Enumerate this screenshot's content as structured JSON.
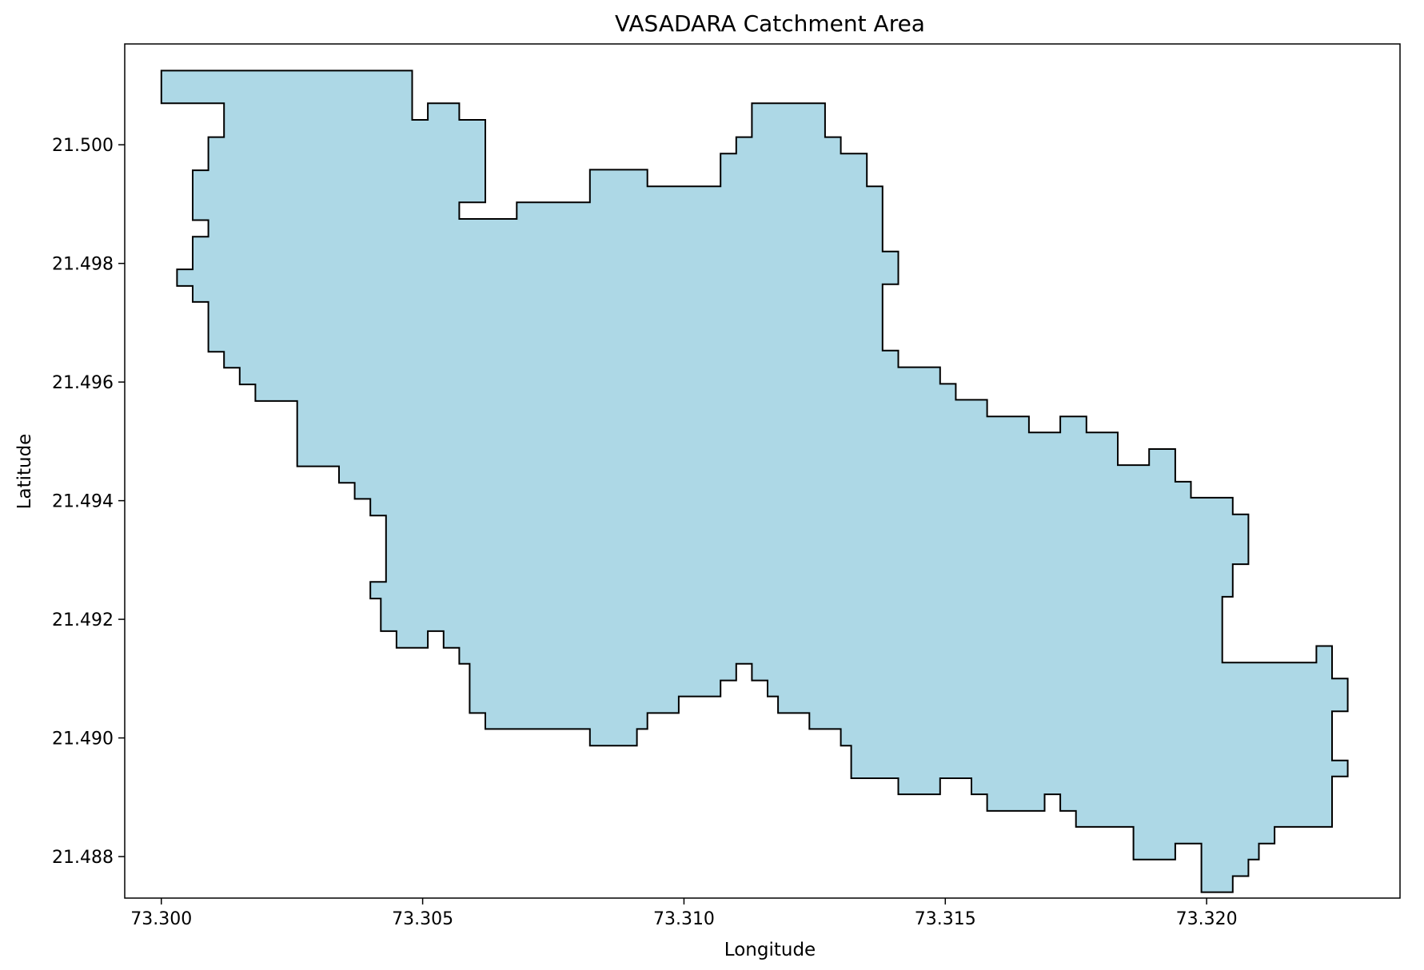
{
  "chart_data": {
    "type": "area",
    "title": "VASADARA Catchment Area",
    "xlabel": "Longitude",
    "ylabel": "Latitude",
    "xlim": [
      73.2993,
      73.3237
    ],
    "ylim": [
      21.4873,
      21.5017
    ],
    "xticks": [
      {
        "value": 73.3,
        "label": "73.300"
      },
      {
        "value": 73.305,
        "label": "73.305"
      },
      {
        "value": 73.31,
        "label": "73.310"
      },
      {
        "value": 73.315,
        "label": "73.315"
      },
      {
        "value": 73.32,
        "label": "73.320"
      }
    ],
    "yticks": [
      {
        "value": 21.488,
        "label": "21.488"
      },
      {
        "value": 21.49,
        "label": "21.490"
      },
      {
        "value": 21.492,
        "label": "21.492"
      },
      {
        "value": 21.494,
        "label": "21.494"
      },
      {
        "value": 21.496,
        "label": "21.496"
      },
      {
        "value": 21.498,
        "label": "21.498"
      },
      {
        "value": 21.5,
        "label": "21.500"
      }
    ],
    "grid": false,
    "fill_color": "#add8e6",
    "edge_color": "#000000",
    "polygon": [
      [
        73.3,
        21.50125
      ],
      [
        73.3048,
        21.50125
      ],
      [
        73.3048,
        21.50042
      ],
      [
        73.3051,
        21.50042
      ],
      [
        73.3051,
        21.5007
      ],
      [
        73.3057,
        21.5007
      ],
      [
        73.3057,
        21.50042
      ],
      [
        73.3062,
        21.50042
      ],
      [
        73.3062,
        21.49903
      ],
      [
        73.3057,
        21.49903
      ],
      [
        73.3057,
        21.49875
      ],
      [
        73.3068,
        21.49875
      ],
      [
        73.3068,
        21.49903
      ],
      [
        73.3082,
        21.49903
      ],
      [
        73.3082,
        21.49958
      ],
      [
        73.3093,
        21.49958
      ],
      [
        73.3093,
        21.4993
      ],
      [
        73.3107,
        21.4993
      ],
      [
        73.3107,
        21.49985
      ],
      [
        73.311,
        21.49985
      ],
      [
        73.311,
        21.50013
      ],
      [
        73.3113,
        21.50013
      ],
      [
        73.3113,
        21.5007
      ],
      [
        73.3127,
        21.5007
      ],
      [
        73.3127,
        21.50013
      ],
      [
        73.313,
        21.50013
      ],
      [
        73.313,
        21.49985
      ],
      [
        73.3135,
        21.49985
      ],
      [
        73.3135,
        21.4993
      ],
      [
        73.3138,
        21.4993
      ],
      [
        73.3138,
        21.4982
      ],
      [
        73.3141,
        21.4982
      ],
      [
        73.3141,
        21.49765
      ],
      [
        73.3138,
        21.49765
      ],
      [
        73.3138,
        21.49653
      ],
      [
        73.3141,
        21.49653
      ],
      [
        73.3141,
        21.49625
      ],
      [
        73.3149,
        21.49625
      ],
      [
        73.3149,
        21.49597
      ],
      [
        73.3152,
        21.49597
      ],
      [
        73.3152,
        21.4957
      ],
      [
        73.3158,
        21.4957
      ],
      [
        73.3158,
        21.49542
      ],
      [
        73.3166,
        21.49542
      ],
      [
        73.3166,
        21.49515
      ],
      [
        73.3172,
        21.49515
      ],
      [
        73.3172,
        21.49542
      ],
      [
        73.3177,
        21.49542
      ],
      [
        73.3177,
        21.49515
      ],
      [
        73.3183,
        21.49515
      ],
      [
        73.3183,
        21.4946
      ],
      [
        73.3189,
        21.4946
      ],
      [
        73.3189,
        21.49487
      ],
      [
        73.3194,
        21.49487
      ],
      [
        73.3194,
        21.49432
      ],
      [
        73.3197,
        21.49432
      ],
      [
        73.3197,
        21.49405
      ],
      [
        73.3205,
        21.49405
      ],
      [
        73.3205,
        21.49377
      ],
      [
        73.3208,
        21.49377
      ],
      [
        73.3208,
        21.49293
      ],
      [
        73.3205,
        21.49293
      ],
      [
        73.3205,
        21.49238
      ],
      [
        73.3203,
        21.49238
      ],
      [
        73.3203,
        21.49127
      ],
      [
        73.3221,
        21.49127
      ],
      [
        73.3221,
        21.49155
      ],
      [
        73.3224,
        21.49155
      ],
      [
        73.3224,
        21.491
      ],
      [
        73.3227,
        21.491
      ],
      [
        73.3227,
        21.49045
      ],
      [
        73.3224,
        21.49045
      ],
      [
        73.3224,
        21.48962
      ],
      [
        73.3227,
        21.48962
      ],
      [
        73.3227,
        21.48935
      ],
      [
        73.3224,
        21.48935
      ],
      [
        73.3224,
        21.4885
      ],
      [
        73.3213,
        21.4885
      ],
      [
        73.3213,
        21.48822
      ],
      [
        73.321,
        21.48822
      ],
      [
        73.321,
        21.48795
      ],
      [
        73.3208,
        21.48795
      ],
      [
        73.3208,
        21.48767
      ],
      [
        73.3205,
        21.48767
      ],
      [
        73.3205,
        21.4874
      ],
      [
        73.3199,
        21.4874
      ],
      [
        73.3199,
        21.48822
      ],
      [
        73.3194,
        21.48822
      ],
      [
        73.3194,
        21.48795
      ],
      [
        73.3186,
        21.48795
      ],
      [
        73.3186,
        21.4885
      ],
      [
        73.3175,
        21.4885
      ],
      [
        73.3175,
        21.48877
      ],
      [
        73.3172,
        21.48877
      ],
      [
        73.3172,
        21.48905
      ],
      [
        73.3169,
        21.48905
      ],
      [
        73.3169,
        21.48877
      ],
      [
        73.3158,
        21.48877
      ],
      [
        73.3158,
        21.48905
      ],
      [
        73.3155,
        21.48905
      ],
      [
        73.3155,
        21.48932
      ],
      [
        73.3149,
        21.48932
      ],
      [
        73.3149,
        21.48905
      ],
      [
        73.3141,
        21.48905
      ],
      [
        73.3141,
        21.48932
      ],
      [
        73.3132,
        21.48932
      ],
      [
        73.3132,
        21.48987
      ],
      [
        73.313,
        21.48987
      ],
      [
        73.313,
        21.49015
      ],
      [
        73.3124,
        21.49015
      ],
      [
        73.3124,
        21.49042
      ],
      [
        73.3118,
        21.49042
      ],
      [
        73.3118,
        21.4907
      ],
      [
        73.3116,
        21.4907
      ],
      [
        73.3116,
        21.49097
      ],
      [
        73.3113,
        21.49097
      ],
      [
        73.3113,
        21.49125
      ],
      [
        73.311,
        21.49125
      ],
      [
        73.311,
        21.49097
      ],
      [
        73.3107,
        21.49097
      ],
      [
        73.3107,
        21.4907
      ],
      [
        73.3099,
        21.4907
      ],
      [
        73.3099,
        21.49042
      ],
      [
        73.3093,
        21.49042
      ],
      [
        73.3093,
        21.49015
      ],
      [
        73.3091,
        21.49015
      ],
      [
        73.3091,
        21.48987
      ],
      [
        73.3082,
        21.48987
      ],
      [
        73.3082,
        21.49015
      ],
      [
        73.3062,
        21.49015
      ],
      [
        73.3062,
        21.49042
      ],
      [
        73.3059,
        21.49042
      ],
      [
        73.3059,
        21.49125
      ],
      [
        73.3057,
        21.49125
      ],
      [
        73.3057,
        21.49152
      ],
      [
        73.3054,
        21.49152
      ],
      [
        73.3054,
        21.4918
      ],
      [
        73.3051,
        21.4918
      ],
      [
        73.3051,
        21.49152
      ],
      [
        73.3045,
        21.49152
      ],
      [
        73.3045,
        21.4918
      ],
      [
        73.3042,
        21.4918
      ],
      [
        73.3042,
        21.49235
      ],
      [
        73.304,
        21.49235
      ],
      [
        73.304,
        21.49263
      ],
      [
        73.3043,
        21.49263
      ],
      [
        73.3043,
        21.49375
      ],
      [
        73.304,
        21.49375
      ],
      [
        73.304,
        21.49403
      ],
      [
        73.3037,
        21.49403
      ],
      [
        73.3037,
        21.4943
      ],
      [
        73.3034,
        21.4943
      ],
      [
        73.3034,
        21.49458
      ],
      [
        73.3026,
        21.49458
      ],
      [
        73.3026,
        21.49568
      ],
      [
        73.3018,
        21.49568
      ],
      [
        73.3018,
        21.49596
      ],
      [
        73.3015,
        21.49596
      ],
      [
        73.3015,
        21.49624
      ],
      [
        73.3012,
        21.49624
      ],
      [
        73.3012,
        21.49651
      ],
      [
        73.3009,
        21.49651
      ],
      [
        73.3009,
        21.49735
      ],
      [
        73.3006,
        21.49735
      ],
      [
        73.3006,
        21.49762
      ],
      [
        73.3003,
        21.49762
      ],
      [
        73.3003,
        21.4979
      ],
      [
        73.3006,
        21.4979
      ],
      [
        73.3006,
        21.49845
      ],
      [
        73.3009,
        21.49845
      ],
      [
        73.3009,
        21.49873
      ],
      [
        73.3006,
        21.49873
      ],
      [
        73.3006,
        21.49957
      ],
      [
        73.3009,
        21.49957
      ],
      [
        73.3009,
        21.50013
      ],
      [
        73.3012,
        21.50013
      ],
      [
        73.3012,
        21.5007
      ],
      [
        73.3,
        21.5007
      ]
    ]
  }
}
